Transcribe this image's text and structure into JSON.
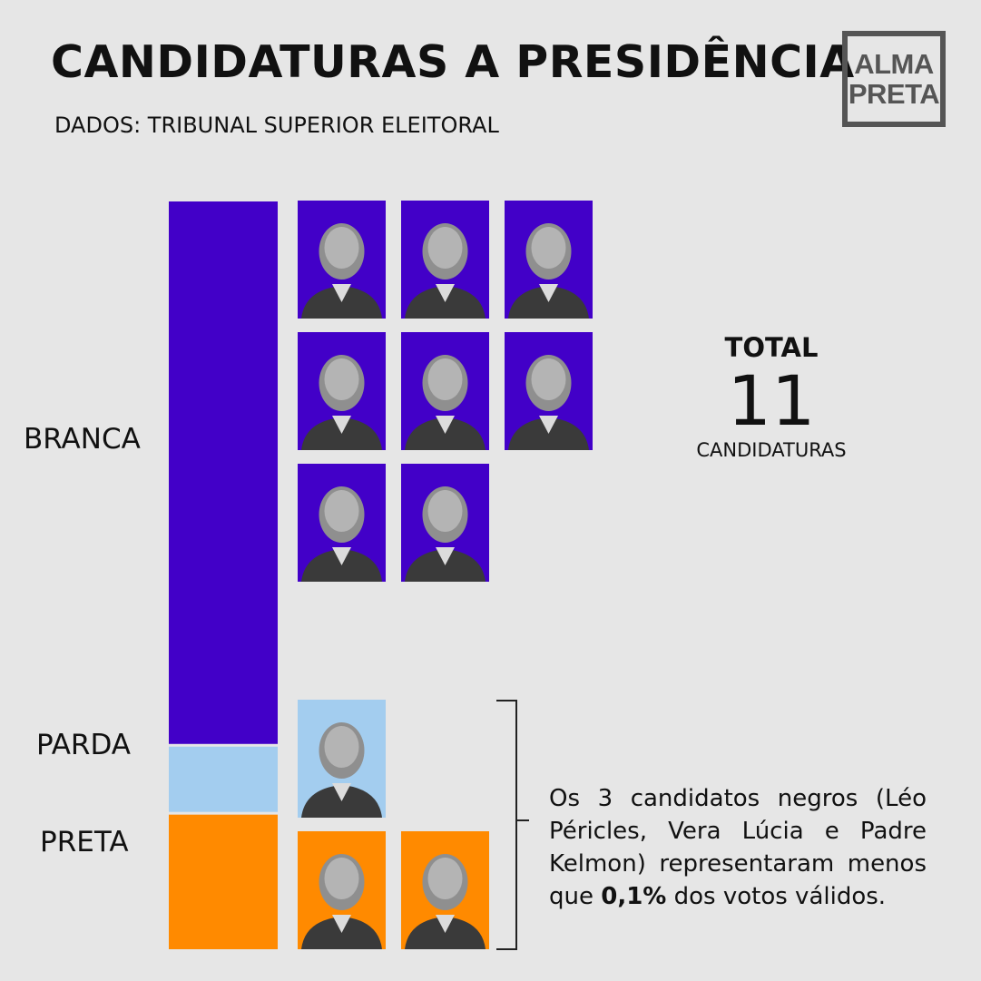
{
  "header": {
    "title": "CANDIDATURAS A PRESIDÊNCIA",
    "subtitle": "DADOS: TRIBUNAL SUPERIOR ELEITORAL"
  },
  "logo": {
    "line1": "ALMA",
    "line2": "PRETA"
  },
  "chart_data": {
    "type": "bar",
    "stacked": true,
    "categories": [
      "BRANCA",
      "PARDA",
      "PRETA"
    ],
    "values": [
      8,
      1,
      2
    ],
    "colors": [
      "#4200c8",
      "#a3cdef",
      "#ff8a00"
    ]
  },
  "portrait_icon": "person-silhouette-icon",
  "total": {
    "label": "TOTAL",
    "value": "11",
    "unit": "CANDIDATURAS"
  },
  "note": {
    "before": "Os 3 candidatos negros (Léo Péricles, Vera Lúcia e Padre Kelmon) representaram menos que ",
    "highlight": "0,1%",
    "after": " dos votos válidos."
  }
}
